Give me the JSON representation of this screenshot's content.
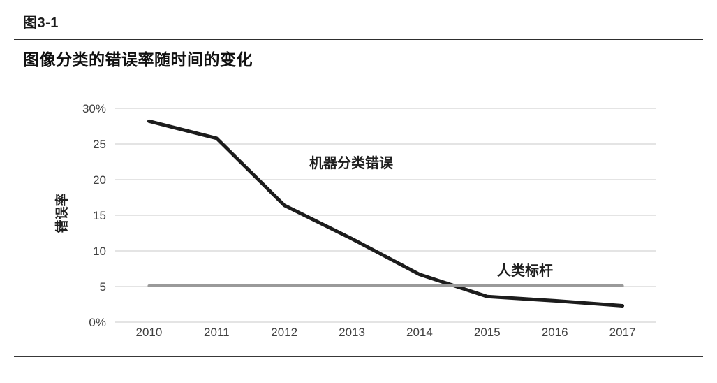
{
  "figure": {
    "label": "图3-1",
    "title": "图像分类的错误率随时间的变化"
  },
  "chart_data": {
    "type": "line",
    "title": "图像分类的错误率随时间的变化",
    "categories": [
      "2010",
      "2011",
      "2012",
      "2013",
      "2014",
      "2015",
      "2016",
      "2017"
    ],
    "series": [
      {
        "name": "机器分类错误",
        "values": [
          28.2,
          25.8,
          16.4,
          11.7,
          6.7,
          3.6,
          3.0,
          2.3
        ],
        "color": "#1c1c1c",
        "stroke_width": 5
      },
      {
        "name": "人类标杆",
        "values": [
          5.1,
          5.1,
          5.1,
          5.1,
          5.1,
          5.1,
          5.1,
          5.1
        ],
        "color": "#9a9a9a",
        "stroke_width": 4
      }
    ],
    "xlabel": "",
    "ylabel": "错误率",
    "ylim": [
      0,
      30
    ],
    "ytick_values": [
      0,
      5,
      10,
      15,
      20,
      25,
      30
    ],
    "ytick_labels": [
      "0%",
      "5",
      "10",
      "15",
      "20",
      "25",
      "30%"
    ],
    "grid": true,
    "legend_position": "inline-annotations",
    "annotations": [
      {
        "text": "机器分类错误",
        "series": 0
      },
      {
        "text": "人类标杆",
        "series": 1
      }
    ]
  },
  "colors": {
    "background": "#ffffff",
    "machine_line": "#1c1c1c",
    "human_line": "#9a9a9a",
    "gridline": "#c8c8c8",
    "tick_text": "#3f3f3f",
    "label_text": "#1f1f1f",
    "divider_top": "#2e2e2e",
    "divider_bottom": "#383838"
  }
}
